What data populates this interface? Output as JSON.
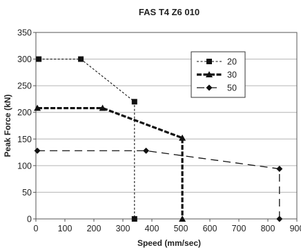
{
  "chart_data": {
    "type": "line",
    "title": "FAS T4 Z6 010",
    "xlabel": "Speed (mm/sec)",
    "ylabel": "Peak Force (kN)",
    "xlim": [
      0,
      900
    ],
    "ylim": [
      0,
      350
    ],
    "xticks": [
      0,
      100,
      200,
      300,
      400,
      500,
      600,
      700,
      800,
      900
    ],
    "yticks": [
      0,
      50,
      100,
      150,
      200,
      250,
      300,
      350
    ],
    "grid": true,
    "legend_position": "top-right",
    "series": [
      {
        "name": "20",
        "marker": "square",
        "line_style": "short-dash",
        "x": [
          10,
          155,
          340,
          340
        ],
        "y": [
          300,
          300,
          220,
          0
        ]
      },
      {
        "name": "30",
        "marker": "triangle",
        "line_style": "thick-dash",
        "x": [
          5,
          230,
          505,
          505
        ],
        "y": [
          208,
          208,
          152,
          0
        ]
      },
      {
        "name": "50",
        "marker": "diamond",
        "line_style": "long-dash",
        "x": [
          5,
          380,
          840,
          840
        ],
        "y": [
          128,
          128,
          94,
          0
        ]
      }
    ]
  }
}
